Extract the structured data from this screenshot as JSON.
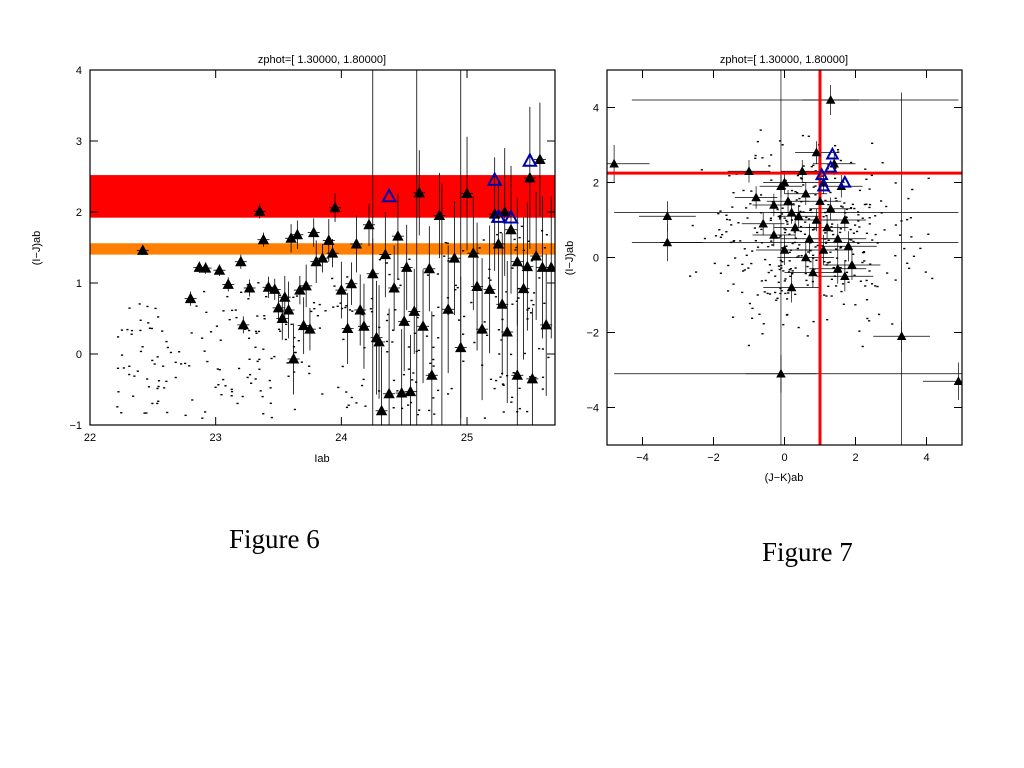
{
  "charts": [
    {
      "title": "zphot=[  1.30000,  1.80000]",
      "xlabel": "Iab",
      "ylabel": "(I−J)ab",
      "caption": "Figure 6"
    },
    {
      "title": "zphot=[  1.30000,  1.80000]",
      "xlabel": "(J−K)ab",
      "ylabel": "(I−J)ab",
      "caption": "Figure 7"
    }
  ],
  "chart_data": [
    {
      "type": "scatter",
      "title": "zphot=[  1.30000,  1.80000]",
      "xlabel": "Iab",
      "ylabel": "(I−J)ab",
      "xlim": [
        22.0,
        25.7
      ],
      "ylim": [
        -1.0,
        4.0
      ],
      "xticks": [
        22,
        23,
        24,
        25
      ],
      "yticks": [
        -1,
        0,
        1,
        2,
        3,
        4
      ],
      "grid": false,
      "bands": [
        {
          "y": [
            1.92,
            2.52
          ],
          "color": "#ff0000"
        },
        {
          "y": [
            1.4,
            1.56
          ],
          "color": "#ff8000"
        }
      ],
      "series": [
        {
          "marker": "filled-triangle",
          "color": "#000000",
          "points": [
            [
              22.42,
              1.46,
              0.06
            ],
            [
              22.8,
              0.78,
              0.1
            ],
            [
              22.87,
              1.22,
              0.08
            ],
            [
              22.92,
              1.21,
              0.08
            ],
            [
              23.03,
              1.18,
              0.08
            ],
            [
              23.1,
              0.98,
              0.1
            ],
            [
              23.2,
              1.3,
              0.1
            ],
            [
              23.22,
              0.41,
              0.12
            ],
            [
              23.27,
              0.93,
              0.12
            ],
            [
              23.35,
              2.01,
              0.1
            ],
            [
              23.38,
              1.61,
              0.1
            ],
            [
              23.42,
              0.94,
              0.15
            ],
            [
              23.47,
              0.91,
              0.15
            ],
            [
              23.5,
              0.65,
              0.2
            ],
            [
              23.53,
              0.5,
              0.3
            ],
            [
              23.55,
              0.8,
              0.3
            ],
            [
              23.58,
              0.62,
              0.4
            ],
            [
              23.6,
              1.63,
              0.2
            ],
            [
              23.62,
              -0.07,
              0.5
            ],
            [
              23.65,
              1.68,
              0.2
            ],
            [
              23.67,
              0.9,
              0.2
            ],
            [
              23.7,
              0.4,
              0.4
            ],
            [
              23.72,
              0.96,
              0.3
            ],
            [
              23.75,
              0.35,
              0.3
            ],
            [
              23.78,
              1.71,
              0.2
            ],
            [
              23.8,
              1.3,
              0.3
            ],
            [
              23.85,
              1.35,
              0.2
            ],
            [
              23.9,
              1.6,
              0.3
            ],
            [
              23.93,
              1.42,
              0.2
            ],
            [
              23.95,
              2.06,
              0.2
            ],
            [
              24.0,
              0.9,
              0.4
            ],
            [
              24.05,
              0.36,
              0.5
            ],
            [
              24.08,
              0.99,
              0.3
            ],
            [
              24.12,
              1.55,
              0.4
            ],
            [
              24.15,
              0.62,
              0.5
            ],
            [
              24.18,
              0.39,
              0.6
            ],
            [
              24.22,
              1.82,
              0.3
            ],
            [
              24.25,
              1.13,
              0.5
            ],
            [
              24.28,
              0.23,
              0.8
            ],
            [
              24.3,
              0.17,
              0.8
            ],
            [
              24.32,
              -0.8,
              0.9
            ],
            [
              24.35,
              1.4,
              0.6
            ],
            [
              24.38,
              -0.56,
              1.2
            ],
            [
              24.42,
              0.93,
              0.6
            ],
            [
              24.45,
              1.66,
              0.6
            ],
            [
              24.48,
              -0.55,
              0.9
            ],
            [
              24.5,
              0.46,
              0.7
            ],
            [
              24.52,
              1.22,
              0.6
            ],
            [
              24.55,
              -0.53,
              0.8
            ],
            [
              24.58,
              0.6,
              0.6
            ],
            [
              24.62,
              2.27,
              0.6
            ],
            [
              24.65,
              0.39,
              0.8
            ],
            [
              24.7,
              1.2,
              0.6
            ],
            [
              24.72,
              -0.3,
              0.9
            ],
            [
              24.78,
              1.95,
              0.6
            ],
            [
              24.85,
              0.63,
              0.9
            ],
            [
              24.9,
              1.35,
              0.8
            ],
            [
              24.95,
              0.09,
              1.0
            ],
            [
              25.0,
              2.26,
              0.8
            ],
            [
              25.05,
              1.42,
              0.8
            ],
            [
              25.08,
              0.95,
              0.9
            ],
            [
              25.12,
              0.35,
              1.0
            ],
            [
              25.18,
              0.91,
              0.9
            ],
            [
              25.22,
              1.97,
              0.8
            ],
            [
              25.25,
              1.55,
              0.9
            ],
            [
              25.28,
              0.7,
              1.0
            ],
            [
              25.32,
              0.31,
              1.0
            ],
            [
              25.35,
              1.75,
              0.9
            ],
            [
              25.4,
              -0.3,
              1.0
            ],
            [
              25.45,
              0.92,
              1.0
            ],
            [
              25.48,
              1.23,
              0.9
            ],
            [
              25.5,
              2.48,
              1.0
            ],
            [
              25.52,
              -0.35,
              1.0
            ],
            [
              25.55,
              1.38,
              0.9
            ],
            [
              25.58,
              2.74,
              0.8
            ],
            [
              25.6,
              1.22,
              1.0
            ],
            [
              25.63,
              0.41,
              1.0
            ],
            [
              25.67,
              1.22,
              1.0
            ],
            [
              25.4,
              1.3,
              0.9
            ],
            [
              25.3,
              2.0,
              0.9
            ]
          ]
        },
        {
          "marker": "triangle",
          "color": "#0000aa",
          "points": [
            [
              24.38,
              2.22
            ],
            [
              25.22,
              2.45
            ],
            [
              25.25,
              1.93
            ],
            [
              25.35,
              1.92
            ],
            [
              25.5,
              2.72
            ]
          ]
        }
      ]
    },
    {
      "type": "scatter",
      "title": "zphot=[  1.30000,  1.80000]",
      "xlabel": "(J−K)ab",
      "ylabel": "(I−J)ab",
      "xlim": [
        -5.0,
        5.0
      ],
      "ylim": [
        -5.0,
        5.0
      ],
      "xticks": [
        -4,
        -2,
        0,
        2,
        4
      ],
      "yticks": [
        -4,
        -2,
        0,
        2,
        4
      ],
      "grid": false,
      "reference_lines": {
        "vertical": 1.0,
        "horizontal": 2.25,
        "color": "#ff0000"
      },
      "series": [
        {
          "marker": "filled-triangle",
          "color": "#000000",
          "points": [
            [
              -4.8,
              2.5,
              0.5
            ],
            [
              -3.3,
              1.1,
              0.4
            ],
            [
              -3.3,
              0.4,
              0.5
            ],
            [
              -1.0,
              2.3,
              0.3
            ],
            [
              -0.8,
              1.6,
              0.3
            ],
            [
              -0.6,
              0.9,
              0.3
            ],
            [
              -0.3,
              0.6,
              0.3
            ],
            [
              -0.1,
              1.9,
              0.3
            ],
            [
              0.0,
              2.0,
              0.3
            ],
            [
              0.1,
              1.5,
              0.3
            ],
            [
              -0.1,
              -3.1,
              0.5
            ],
            [
              0.2,
              1.2,
              0.3
            ],
            [
              0.3,
              0.8,
              0.3
            ],
            [
              0.4,
              1.1,
              0.3
            ],
            [
              0.5,
              2.3,
              0.3
            ],
            [
              0.6,
              1.7,
              0.3
            ],
            [
              0.7,
              0.5,
              0.4
            ],
            [
              0.8,
              -0.4,
              0.4
            ],
            [
              0.9,
              2.8,
              0.3
            ],
            [
              0.9,
              1.0,
              0.3
            ],
            [
              1.0,
              1.5,
              0.3
            ],
            [
              1.1,
              2.0,
              0.3
            ],
            [
              1.1,
              0.2,
              0.4
            ],
            [
              1.2,
              0.8,
              0.3
            ],
            [
              1.3,
              1.3,
              0.3
            ],
            [
              1.3,
              4.2,
              0.4
            ],
            [
              1.4,
              2.5,
              0.3
            ],
            [
              1.5,
              0.5,
              0.4
            ],
            [
              1.6,
              1.9,
              0.3
            ],
            [
              1.7,
              1.0,
              0.3
            ],
            [
              1.7,
              -0.5,
              0.4
            ],
            [
              1.8,
              0.3,
              0.4
            ],
            [
              3.3,
              -2.1,
              0.4
            ],
            [
              4.9,
              -3.3,
              0.5
            ],
            [
              0.2,
              -0.8,
              0.4
            ],
            [
              0.6,
              0.0,
              0.4
            ],
            [
              1.5,
              -0.3,
              0.4
            ],
            [
              -0.3,
              1.4,
              0.3
            ],
            [
              0.0,
              0.2,
              0.4
            ],
            [
              1.9,
              -0.2,
              0.4
            ]
          ]
        },
        {
          "marker": "triangle",
          "color": "#0000aa",
          "points": [
            [
              1.1,
              1.9
            ],
            [
              1.3,
              2.4
            ],
            [
              1.35,
              2.75
            ],
            [
              1.7,
              2.0
            ],
            [
              1.05,
              2.2
            ]
          ]
        }
      ]
    }
  ]
}
